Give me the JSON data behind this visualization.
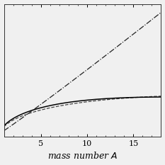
{
  "title": "",
  "xlabel": "mass number $A$",
  "xlim": [
    1,
    18
  ],
  "ylim": [
    0,
    1.0
  ],
  "x_ticks": [
    5,
    10,
    15
  ],
  "background_color": "#f0f0f0",
  "solid_color": "#000000",
  "dashed_color": "#444444",
  "dashdot_color": "#222222",
  "figsize": [
    2.33,
    2.33
  ],
  "dpi": 100
}
